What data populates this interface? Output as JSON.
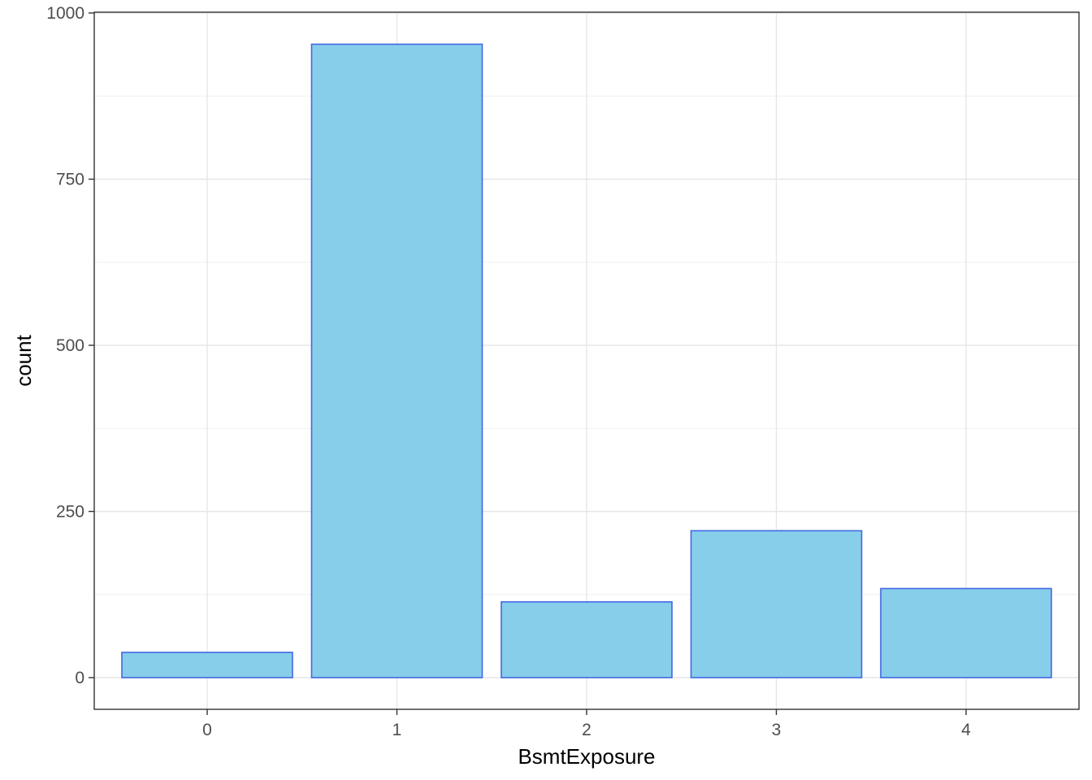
{
  "chart_data": {
    "type": "bar",
    "xlabel": "BsmtExposure",
    "ylabel": "count",
    "categories": [
      "0",
      "1",
      "2",
      "3",
      "4"
    ],
    "values": [
      38,
      953,
      114,
      221,
      134
    ],
    "ylim": [
      -47,
      1000
    ],
    "yticks": [
      0,
      250,
      500,
      750,
      1000
    ],
    "grid": true,
    "bar_fill": "#87CEEB",
    "bar_stroke": "#4169E1"
  }
}
